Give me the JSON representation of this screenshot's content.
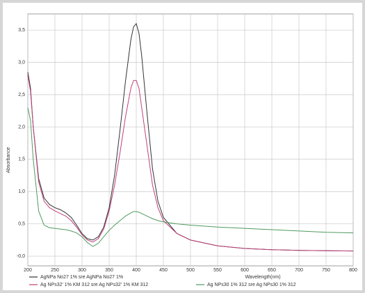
{
  "chart_data": {
    "type": "line",
    "x_label": "Wavelength(nm)",
    "y_label": "Absorbance",
    "x": [
      200,
      205,
      210,
      220,
      230,
      240,
      250,
      260,
      270,
      280,
      290,
      300,
      310,
      320,
      330,
      340,
      350,
      360,
      370,
      380,
      390,
      395,
      400,
      405,
      410,
      420,
      430,
      440,
      450,
      475,
      500,
      550,
      600,
      650,
      700,
      750,
      800
    ],
    "series": [
      {
        "name": "AgNPa No27 1% sre AgNPa No27 1%",
        "color": "#333333",
        "values": [
          2.85,
          2.6,
          2.0,
          1.2,
          0.9,
          0.8,
          0.75,
          0.72,
          0.67,
          0.6,
          0.48,
          0.35,
          0.27,
          0.25,
          0.3,
          0.45,
          0.75,
          1.25,
          1.95,
          2.7,
          3.35,
          3.55,
          3.6,
          3.45,
          3.1,
          2.2,
          1.35,
          0.85,
          0.6,
          0.35,
          0.25,
          0.16,
          0.12,
          0.1,
          0.09,
          0.085,
          0.08
        ]
      },
      {
        "name": "Ag NPs32' 1% KM 312 sre Ag NPs32' 1% KM 312",
        "color": "#c0407a",
        "values": [
          2.8,
          2.55,
          2.0,
          1.15,
          0.85,
          0.75,
          0.7,
          0.66,
          0.62,
          0.55,
          0.45,
          0.33,
          0.25,
          0.22,
          0.27,
          0.42,
          0.7,
          1.1,
          1.6,
          2.15,
          2.6,
          2.72,
          2.72,
          2.6,
          2.3,
          1.7,
          1.1,
          0.75,
          0.55,
          0.35,
          0.25,
          0.16,
          0.12,
          0.1,
          0.09,
          0.085,
          0.08
        ]
      },
      {
        "name": "Ag NPs30 1%  312 sre Ag NPs30 1%  312",
        "color": "#4f9a5f",
        "values": [
          2.3,
          2.1,
          1.5,
          0.7,
          0.48,
          0.44,
          0.43,
          0.42,
          0.41,
          0.39,
          0.36,
          0.3,
          0.21,
          0.15,
          0.2,
          0.3,
          0.4,
          0.48,
          0.55,
          0.62,
          0.67,
          0.69,
          0.69,
          0.68,
          0.66,
          0.62,
          0.58,
          0.55,
          0.53,
          0.5,
          0.48,
          0.45,
          0.43,
          0.41,
          0.39,
          0.37,
          0.36
        ]
      }
    ],
    "xlim": [
      200,
      800
    ],
    "xticks": [
      200,
      250,
      300,
      350,
      400,
      450,
      500,
      550,
      600,
      650,
      700,
      750,
      800
    ],
    "ylim": [
      -0.15,
      3.75
    ],
    "yticks": [
      {
        "value": 0,
        "label": "-0,0"
      },
      {
        "value": 0.5,
        "label": "0,5"
      },
      {
        "value": 1,
        "label": "1,0"
      },
      {
        "value": 1.5,
        "label": "1,5"
      },
      {
        "value": 2,
        "label": "2,0"
      },
      {
        "value": 2.5,
        "label": "2,5"
      },
      {
        "value": 3,
        "label": "3,0"
      },
      {
        "value": 3.5,
        "label": "3,5"
      }
    ],
    "grid": true,
    "legend": "bottom"
  }
}
